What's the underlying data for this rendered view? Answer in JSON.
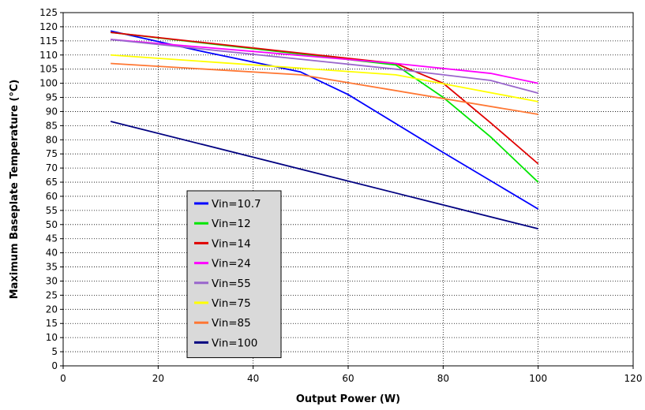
{
  "chart_data": {
    "type": "line",
    "title": "",
    "xlabel": "Output Power (W)",
    "ylabel": "Maximum Baseplate Temperature (°C)",
    "xlim": [
      0,
      120
    ],
    "ylim": [
      0,
      125
    ],
    "xticks": [
      0,
      20,
      40,
      60,
      80,
      100,
      120
    ],
    "yticks": [
      0,
      5,
      10,
      15,
      20,
      25,
      30,
      35,
      40,
      45,
      50,
      55,
      60,
      65,
      70,
      75,
      80,
      85,
      90,
      95,
      100,
      105,
      110,
      115,
      120,
      125
    ],
    "grid": true,
    "legend_position": "lower-left",
    "series": [
      {
        "name": "Vin=10.7",
        "color": "#0000ff",
        "x": [
          10,
          30,
          50,
          60,
          80,
          100
        ],
        "y": [
          118.5,
          111,
          104,
          96,
          75.5,
          55.5
        ]
      },
      {
        "name": "Vin=12",
        "color": "#00e600",
        "x": [
          10,
          70,
          80,
          90,
          100
        ],
        "y": [
          118,
          106.5,
          95,
          81,
          65
        ]
      },
      {
        "name": "Vin=14",
        "color": "#e00000",
        "x": [
          10,
          70,
          80,
          90,
          100
        ],
        "y": [
          118,
          107,
          100,
          86,
          71.5
        ]
      },
      {
        "name": "Vin=24",
        "color": "#ff00ff",
        "x": [
          10,
          70,
          90,
          100
        ],
        "y": [
          115.5,
          107,
          103.5,
          100
        ]
      },
      {
        "name": "Vin=55",
        "color": "#9966cc",
        "x": [
          10,
          70,
          90,
          100
        ],
        "y": [
          115.5,
          105,
          101,
          96.5
        ]
      },
      {
        "name": "Vin=75",
        "color": "#ffff00",
        "x": [
          10,
          70,
          100
        ],
        "y": [
          110,
          103,
          93.5
        ]
      },
      {
        "name": "Vin=85",
        "color": "#ff7733",
        "x": [
          10,
          50,
          100
        ],
        "y": [
          107,
          103,
          89
        ]
      },
      {
        "name": "Vin=100",
        "color": "#000080",
        "x": [
          10,
          100
        ],
        "y": [
          86.5,
          48.5
        ]
      }
    ]
  }
}
